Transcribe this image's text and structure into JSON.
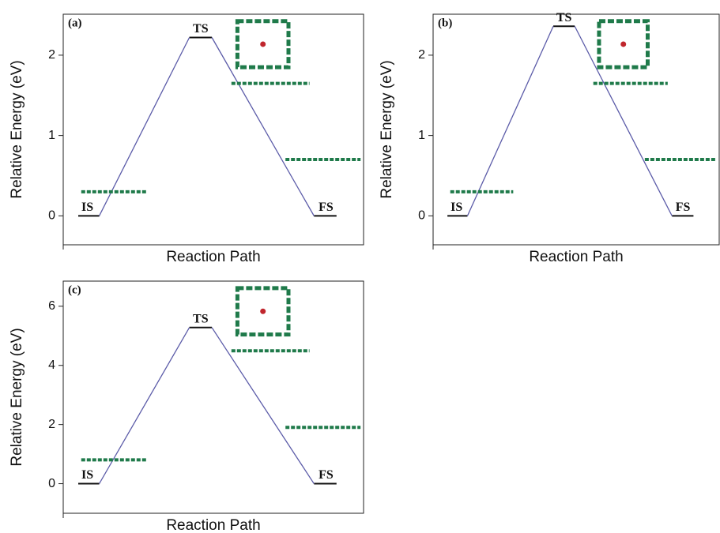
{
  "chart_data": [
    {
      "type": "line",
      "panel_label": "(a)",
      "categories": [
        "IS",
        "TS",
        "FS"
      ],
      "values": [
        0,
        2.22,
        0
      ],
      "color": "#5b5ba8",
      "xlabel": "Reaction Path",
      "ylabel": "Relative Energy (eV)",
      "ylim": [
        -0.36,
        2.51
      ],
      "yticks": [
        0,
        1,
        2
      ]
    },
    {
      "type": "line",
      "panel_label": "(b)",
      "categories": [
        "IS",
        "TS",
        "FS"
      ],
      "values": [
        0,
        2.36,
        0
      ],
      "color": "#5b5ba8",
      "xlabel": "Reaction Path",
      "ylabel": "Relative Energy (eV)",
      "ylim": [
        -0.36,
        2.51
      ],
      "yticks": [
        0,
        1,
        2
      ]
    },
    {
      "type": "line",
      "panel_label": "(c)",
      "categories": [
        "IS",
        "TS",
        "FS"
      ],
      "values": [
        0,
        5.28,
        0
      ],
      "color": "#5b5ba8",
      "xlabel": "Reaction Path",
      "ylabel": "Relative Energy (eV)",
      "ylim": [
        -1,
        6.85
      ],
      "yticks": [
        0,
        2,
        4,
        6
      ]
    }
  ]
}
